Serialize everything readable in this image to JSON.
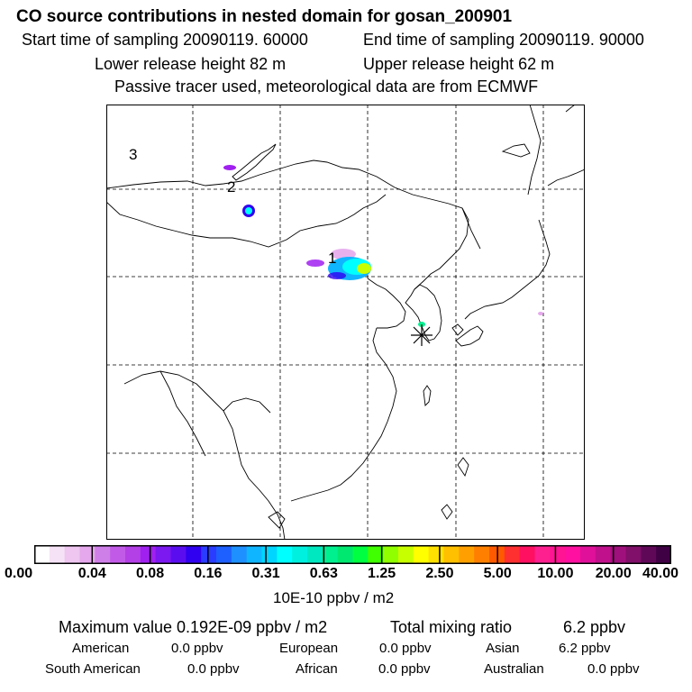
{
  "header": {
    "title": "CO  source contributions in nested domain for gosan_200901",
    "start_time": "Start time of sampling 20090119. 60000",
    "end_time": "End time of sampling 20090119. 90000",
    "lower_height": "Lower release height   82 m",
    "upper_height": "Upper release height   62 m",
    "tracer_note": "Passive tracer used, meteorological data are from ECMWF"
  },
  "map": {
    "labels": [
      "1",
      "2",
      "3"
    ],
    "receptor": "gosan-receptor-star"
  },
  "colorbar": {
    "ticks": [
      "0.00",
      "0.04",
      "0.08",
      "0.16",
      "0.31",
      "0.63",
      "1.25",
      "2.50",
      "5.00",
      "10.00",
      "20.00",
      "40.00"
    ],
    "units": "10E-10 ppbv / m2",
    "colors": [
      "#ffffff",
      "#f6e2f6",
      "#eec6f0",
      "#e5a8ec",
      "#cf7fe8",
      "#c25ae8",
      "#b33fe6",
      "#a020f0",
      "#7c18f0",
      "#5a0ef0",
      "#3000f0",
      "#2a3cff",
      "#1e5fff",
      "#1e90ff",
      "#10b5ff",
      "#00d5ff",
      "#00ffff",
      "#00f0e0",
      "#00e8c0",
      "#00f090",
      "#00e870",
      "#00ff40",
      "#40ff00",
      "#90ff00",
      "#c8ff00",
      "#ffff00",
      "#ffe000",
      "#ffc000",
      "#ffa000",
      "#ff8000",
      "#ff5a00",
      "#ff3030",
      "#ff1060",
      "#ff2090",
      "#ff1493",
      "#ff10a0",
      "#e0109a",
      "#c0108c",
      "#a0107c",
      "#80106a",
      "#600858",
      "#400044"
    ]
  },
  "summary": {
    "max_value": "Maximum value  0.192E-09 ppbv / m2",
    "total_label": "Total mixing ratio",
    "total_value": "6.2 ppbv"
  },
  "sources": [
    {
      "name": "American",
      "value": "0.0 ppbv"
    },
    {
      "name": "European",
      "value": "0.0 ppbv"
    },
    {
      "name": "Asian",
      "value": "6.2 ppbv"
    },
    {
      "name": "South American",
      "value": "0.0 ppbv"
    },
    {
      "name": "African",
      "value": "0.0 ppbv"
    },
    {
      "name": "Australian",
      "value": "0.0 ppbv"
    }
  ]
}
